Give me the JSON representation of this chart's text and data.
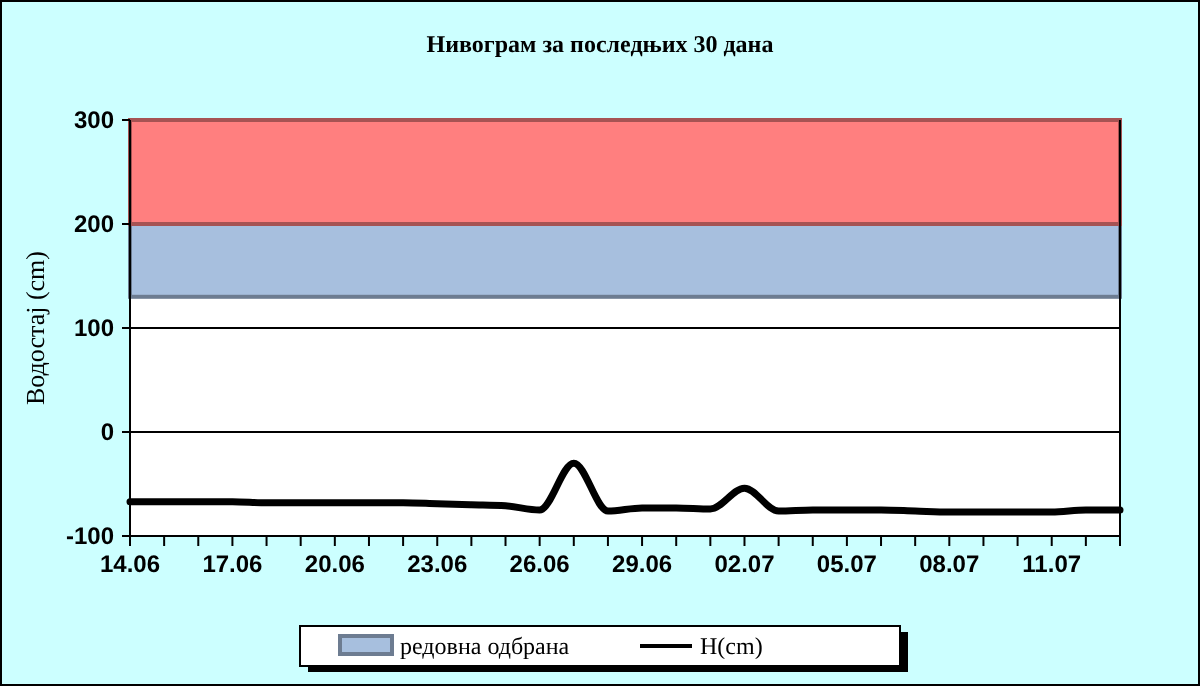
{
  "chart_data": {
    "type": "line",
    "title": "Нивограм за последњих 30 дана",
    "ylabel": "Водостај (cm)",
    "x": [
      "--06-14",
      "--06-15",
      "--06-16",
      "--06-17",
      "--06-18",
      "--06-19",
      "--06-20",
      "--06-21",
      "--06-22",
      "--06-23",
      "--06-24",
      "--06-25",
      "--06-26",
      "--06-27",
      "--06-28",
      "--06-29",
      "--06-30",
      "--07-01",
      "--07-02",
      "--07-03",
      "--07-04",
      "--07-05",
      "--07-06",
      "--07-07",
      "--07-08",
      "--07-09",
      "--07-10",
      "--07-11",
      "--07-12",
      "--07-13"
    ],
    "series": [
      {
        "name": "H(cm)",
        "color": "#000000",
        "values": [
          -67,
          -67,
          -67,
          -67,
          -68,
          -68,
          -68,
          -68,
          -68,
          -69,
          -70,
          -71,
          -75,
          -30,
          -76,
          -73,
          -73,
          -74,
          -54,
          -76,
          -75,
          -75,
          -75,
          -76,
          -77,
          -77,
          -77,
          -77,
          -75,
          -75
        ]
      }
    ],
    "xlim": [
      "--06-14",
      "--07-13"
    ],
    "xticks": [
      {
        "value": "--06-14",
        "label": "14.06"
      },
      {
        "value": "--06-15",
        "label": null
      },
      {
        "value": "--06-16",
        "label": null
      },
      {
        "value": "--06-17",
        "label": "17.06"
      },
      {
        "value": "--06-18",
        "label": null
      },
      {
        "value": "--06-19",
        "label": null
      },
      {
        "value": "--06-20",
        "label": "20.06"
      },
      {
        "value": "--06-21",
        "label": null
      },
      {
        "value": "--06-22",
        "label": null
      },
      {
        "value": "--06-23",
        "label": "23.06"
      },
      {
        "value": "--06-24",
        "label": null
      },
      {
        "value": "--06-25",
        "label": null
      },
      {
        "value": "--06-26",
        "label": "26.06"
      },
      {
        "value": "--06-27",
        "label": null
      },
      {
        "value": "--06-28",
        "label": null
      },
      {
        "value": "--06-29",
        "label": "29.06"
      },
      {
        "value": "--06-30",
        "label": null
      },
      {
        "value": "--07-01",
        "label": null
      },
      {
        "value": "--07-02",
        "label": "02.07"
      },
      {
        "value": "--07-03",
        "label": null
      },
      {
        "value": "--07-04",
        "label": null
      },
      {
        "value": "--07-05",
        "label": "05.07"
      },
      {
        "value": "--07-06",
        "label": null
      },
      {
        "value": "--07-07",
        "label": null
      },
      {
        "value": "--07-08",
        "label": "08.07"
      },
      {
        "value": "--07-09",
        "label": null
      },
      {
        "value": "--07-10",
        "label": null
      },
      {
        "value": "--07-11",
        "label": "11.07"
      },
      {
        "value": "--07-12",
        "label": null
      },
      {
        "value": "--07-13",
        "label": null
      }
    ],
    "ylim": [
      -100,
      300
    ],
    "yticks": [
      -100,
      0,
      100,
      200,
      300
    ],
    "grid": "y",
    "bands": [
      {
        "axis": "y",
        "from": 130,
        "to": 200,
        "label": "редовна одбрана",
        "color": "#a7bfde"
      },
      {
        "axis": "y",
        "from": 200,
        "to": 300,
        "color": "#ff7f7f"
      }
    ],
    "legend": "bottom",
    "marker": "none",
    "line_style": "solid"
  }
}
